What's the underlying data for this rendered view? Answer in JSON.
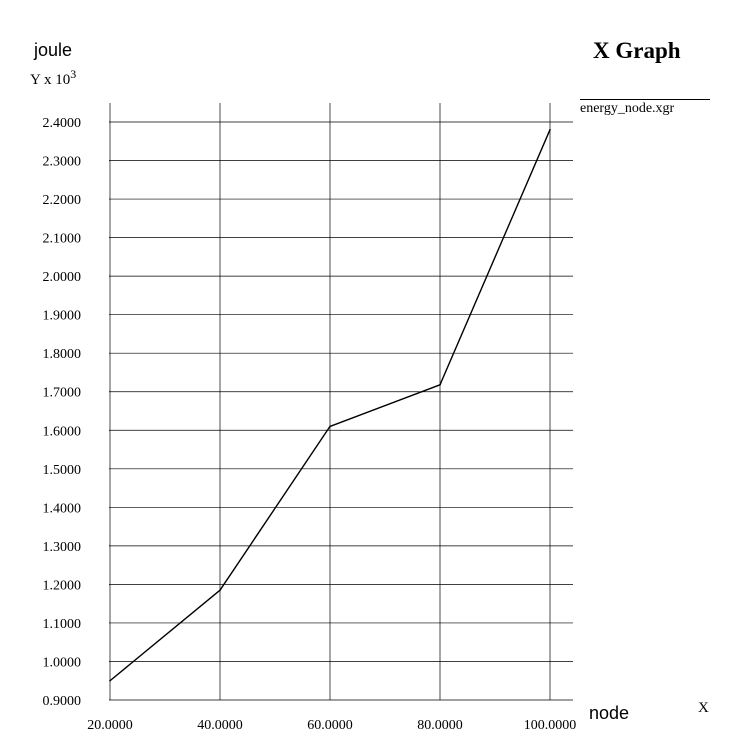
{
  "chart_data": {
    "type": "line",
    "title": "X Graph",
    "ylabel": "joule",
    "yscale_prefix": "Y x 10",
    "yscale_exponent": "3",
    "xlabel": "node",
    "xscale": "X",
    "x_ticks": [
      "20.0000",
      "40.0000",
      "60.0000",
      "80.0000",
      "100.0000"
    ],
    "y_ticks": [
      "0.9000",
      "1.0000",
      "1.1000",
      "1.2000",
      "1.3000",
      "1.4000",
      "1.5000",
      "1.6000",
      "1.7000",
      "1.8000",
      "1.9000",
      "2.0000",
      "2.1000",
      "2.2000",
      "2.3000",
      "2.4000"
    ],
    "xlim": [
      20,
      100
    ],
    "ylim": [
      0.9,
      2.4
    ],
    "grid": true,
    "legend_position": "top-right",
    "series": [
      {
        "name": "energy_node.xgr",
        "color": "#000000",
        "x": [
          20,
          40,
          60,
          80,
          100
        ],
        "y": [
          0.95,
          1.185,
          1.61,
          1.718,
          2.38
        ]
      }
    ]
  }
}
